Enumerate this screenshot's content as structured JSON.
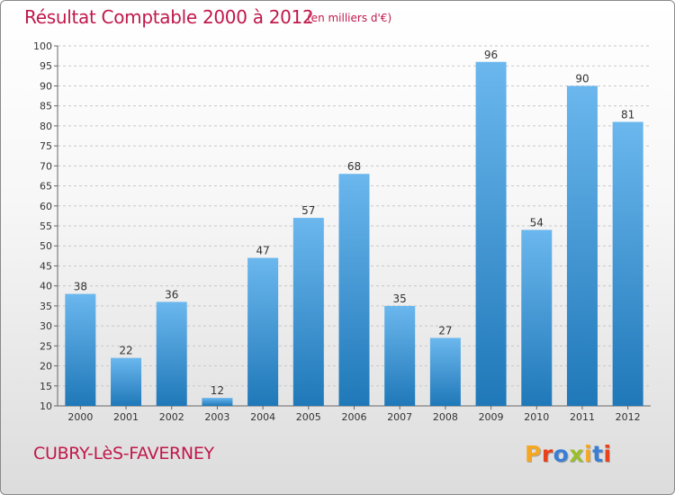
{
  "header": {
    "title": "Résultat Comptable 2000 à 2012",
    "subtitle": "(en milliers d'€)"
  },
  "footer": {
    "place": "CUBRY-LèS-FAVERNEY",
    "logo_text": "Proxiti",
    "logo_colors": [
      "#f5a623",
      "#e8421c",
      "#3a7fd5",
      "#9bbf2a",
      "#f5a623",
      "#3a7fd5",
      "#e8421c"
    ]
  },
  "colors": {
    "text_accent": "#c0184a",
    "bar_top": "#6bb7ee",
    "bar_bottom": "#1f78b8"
  },
  "chart_data": {
    "type": "bar",
    "title": "Résultat Comptable 2000 à 2012",
    "subtitle": "(en milliers d'€)",
    "categories": [
      "2000",
      "2001",
      "2002",
      "2003",
      "2004",
      "2005",
      "2006",
      "2007",
      "2008",
      "2009",
      "2010",
      "2011",
      "2012"
    ],
    "values": [
      38,
      22,
      36,
      12,
      47,
      57,
      68,
      35,
      27,
      96,
      54,
      90,
      81
    ],
    "ylim": [
      10,
      100
    ],
    "yticks": [
      10,
      15,
      20,
      25,
      30,
      35,
      40,
      45,
      50,
      55,
      60,
      65,
      70,
      75,
      80,
      85,
      90,
      95,
      100
    ],
    "xlabel": "",
    "ylabel": "",
    "grid": true,
    "grid_style": "dashed horizontal",
    "show_data_labels": true
  }
}
